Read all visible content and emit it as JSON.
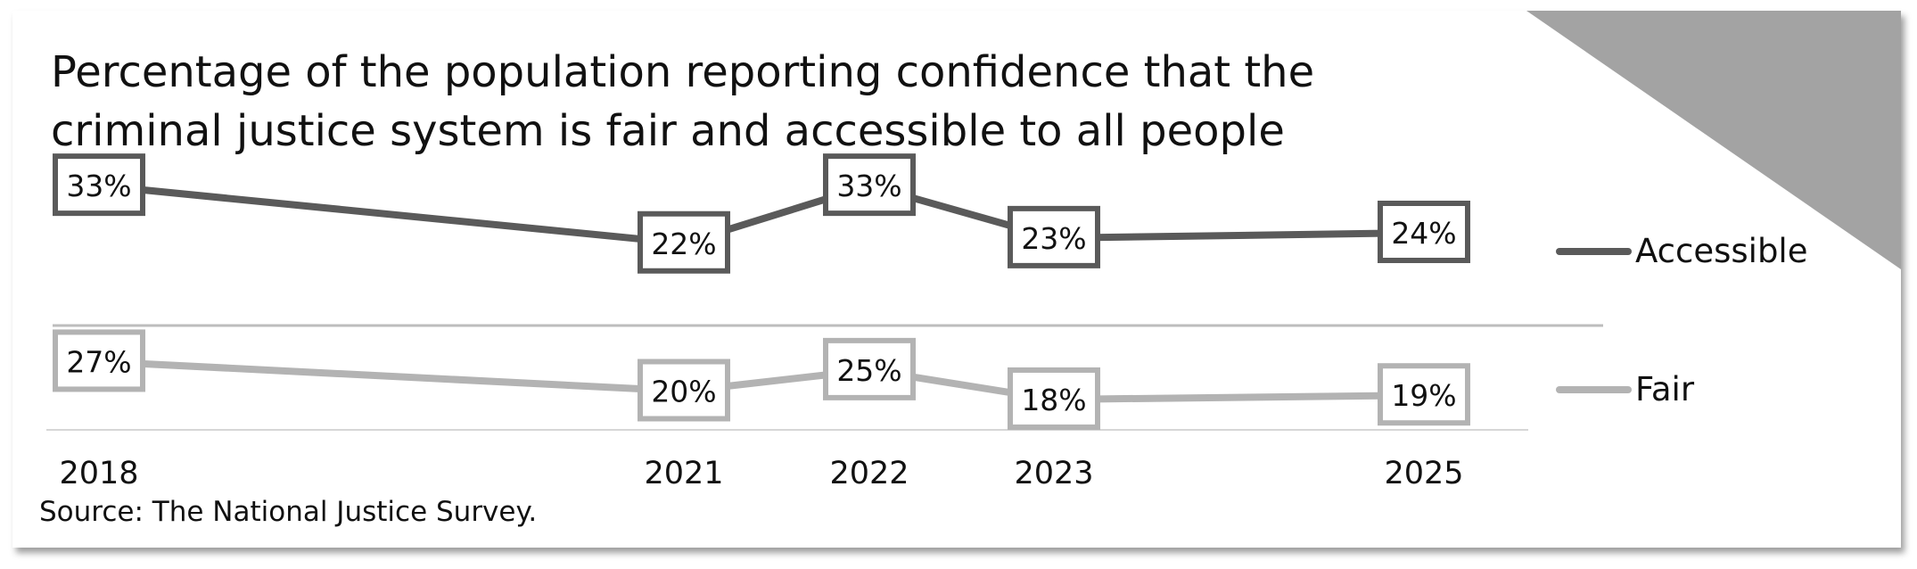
{
  "title": "Percentage of the population reporting confidence that the criminal justice system is fair and accessible to all people",
  "source": "Source: The National Justice Survey.",
  "colors": {
    "accessible": "#5a5a5a",
    "fair": "#b3b3b3",
    "corner": "#a3a3a3"
  },
  "chart_data": {
    "type": "line",
    "x": [
      "2018",
      "2021",
      "2022",
      "2023",
      "2025"
    ],
    "series": [
      {
        "name": "Accessible",
        "values": [
          33,
          22,
          33,
          23,
          24
        ]
      },
      {
        "name": "Fair",
        "values": [
          27,
          20,
          25,
          18,
          19
        ]
      }
    ],
    "data_label_suffix": "%",
    "ylim": [
      0,
      40
    ],
    "grid": false,
    "legend": "right",
    "layout": "two stacked panels, one per series"
  }
}
